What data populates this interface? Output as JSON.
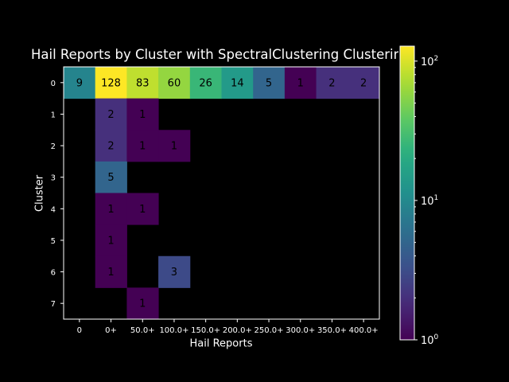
{
  "chart_data": {
    "type": "heatmap",
    "title": "Hail Reports by Cluster with SpectralClustering Clustering",
    "xlabel": "Hail Reports",
    "ylabel": "Cluster",
    "x_categories": [
      "0",
      "0+",
      "50.0+",
      "100.0+",
      "150.0+",
      "200.0+",
      "250.0+",
      "300.0+",
      "350.0+",
      "400.0+"
    ],
    "y_categories": [
      "0",
      "1",
      "2",
      "3",
      "4",
      "5",
      "6",
      "7"
    ],
    "values": [
      [
        9,
        128,
        83,
        60,
        26,
        14,
        5,
        1,
        2,
        2
      ],
      [
        null,
        2,
        1,
        null,
        null,
        null,
        null,
        null,
        null,
        null
      ],
      [
        null,
        2,
        1,
        1,
        null,
        null,
        null,
        null,
        null,
        null
      ],
      [
        null,
        5,
        null,
        null,
        null,
        null,
        null,
        null,
        null,
        null
      ],
      [
        null,
        1,
        1,
        null,
        null,
        null,
        null,
        null,
        null,
        null
      ],
      [
        null,
        1,
        null,
        null,
        null,
        null,
        null,
        null,
        null,
        null
      ],
      [
        null,
        1,
        null,
        3,
        null,
        null,
        null,
        null,
        null,
        null
      ],
      [
        null,
        null,
        1,
        null,
        null,
        null,
        null,
        null,
        null,
        null
      ]
    ],
    "colorscale": "viridis",
    "color_scale_type": "log",
    "colorbar_range": [
      1,
      128
    ],
    "colorbar_ticks": [
      {
        "base": "10",
        "exp": "0"
      },
      {
        "base": "10",
        "exp": "1"
      },
      {
        "base": "10",
        "exp": "2"
      }
    ],
    "background": "#000000",
    "empty_cell_color": "#000000",
    "grid": false
  }
}
